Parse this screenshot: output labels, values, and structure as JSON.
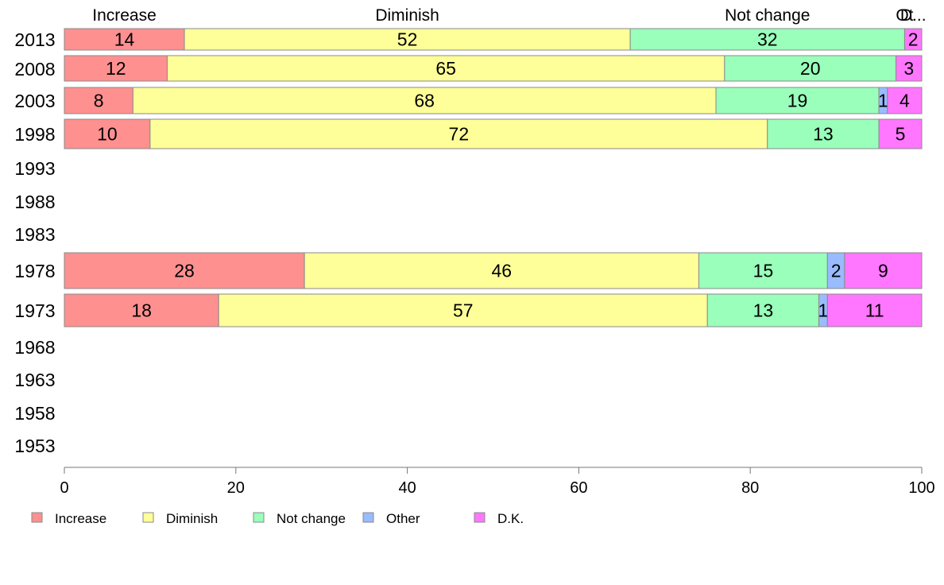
{
  "chart_data": {
    "type": "bar",
    "orientation": "horizontal",
    "stacked": true,
    "categories": [
      "2013",
      "2008",
      "2003",
      "1998",
      "1993",
      "1988",
      "1983",
      "1978",
      "1973",
      "1968",
      "1963",
      "1958",
      "1953"
    ],
    "series": [
      {
        "name": "Increase",
        "color": "#ff9090",
        "values": [
          14,
          12,
          8,
          10,
          null,
          null,
          null,
          28,
          18,
          null,
          null,
          null,
          null
        ]
      },
      {
        "name": "Diminish",
        "color": "#ffff99",
        "values": [
          52,
          65,
          68,
          72,
          null,
          null,
          null,
          46,
          57,
          null,
          null,
          null,
          null
        ]
      },
      {
        "name": "Not change",
        "color": "#99ffbb",
        "values": [
          32,
          20,
          19,
          13,
          null,
          null,
          null,
          15,
          13,
          null,
          null,
          null,
          null
        ]
      },
      {
        "name": "Other",
        "color": "#99bbff",
        "values": [
          0,
          0,
          1,
          0,
          null,
          null,
          null,
          2,
          1,
          null,
          null,
          null,
          null
        ]
      },
      {
        "name": "D.K.",
        "color": "#ff77ff",
        "values": [
          2,
          3,
          4,
          5,
          null,
          null,
          null,
          9,
          11,
          null,
          null,
          null,
          null
        ]
      }
    ],
    "top_labels": [
      "Increase",
      "Diminish",
      "Not change",
      "Ot",
      "D..."
    ],
    "xlim": [
      0,
      100
    ],
    "xticks": [
      0,
      20,
      40,
      60,
      80,
      100
    ],
    "grid": false,
    "legend_position": "bottom-left"
  }
}
